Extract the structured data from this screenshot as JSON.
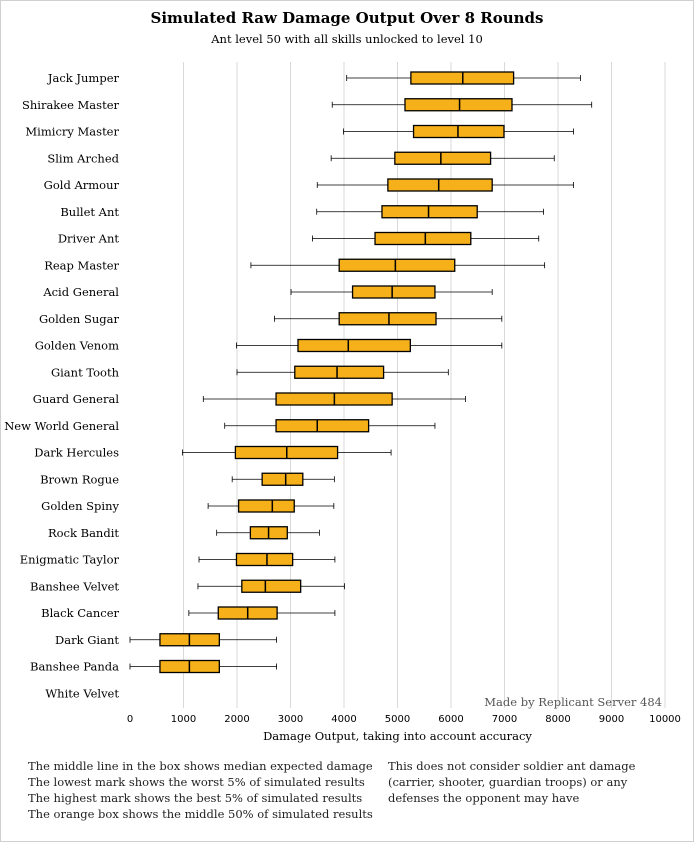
{
  "chart_data": {
    "type": "boxplot",
    "title": "Simulated Raw Damage Output Over 8 Rounds",
    "subtitle": "Ant level 50 with all skills unlocked to level 10",
    "xlabel": "Damage Output, taking into account accuracy",
    "xlim": [
      0,
      10000
    ],
    "xticks": [
      "0",
      "1000",
      "2000",
      "3000",
      "4000",
      "5000",
      "6000",
      "7000",
      "8000",
      "9000",
      "10000"
    ],
    "grid": "vertical",
    "box_color": "#F5B01A",
    "categories": [
      "Jack Jumper",
      "Shirakee Master",
      "Mimicry Master",
      "Slim Arched",
      "Gold Armour",
      "Bullet Ant",
      "Driver Ant",
      "Reap Master",
      "Acid General",
      "Golden Sugar",
      "Golden Venom",
      "Giant Tooth",
      "Guard General",
      "New World General",
      "Dark Hercules",
      "Brown Rogue",
      "Golden Spiny",
      "Rock Bandit",
      "Enigmatic Taylor",
      "Banshee Velvet",
      "Black Cancer",
      "Dark Giant",
      "Banshee Panda",
      "White Velvet"
    ],
    "series": [
      {
        "whisker_low": 4050,
        "q1": 5250,
        "median": 6220,
        "q3": 7170,
        "whisker_high": 8420
      },
      {
        "whisker_low": 3780,
        "q1": 5140,
        "median": 6160,
        "q3": 7140,
        "whisker_high": 8630
      },
      {
        "whisker_low": 3990,
        "q1": 5300,
        "median": 6130,
        "q3": 6990,
        "whisker_high": 8290
      },
      {
        "whisker_low": 3760,
        "q1": 4950,
        "median": 5810,
        "q3": 6740,
        "whisker_high": 7930
      },
      {
        "whisker_low": 3500,
        "q1": 4820,
        "median": 5770,
        "q3": 6770,
        "whisker_high": 8290
      },
      {
        "whisker_low": 3490,
        "q1": 4710,
        "median": 5580,
        "q3": 6490,
        "whisker_high": 7730
      },
      {
        "whisker_low": 3410,
        "q1": 4580,
        "median": 5520,
        "q3": 6370,
        "whisker_high": 7640
      },
      {
        "whisker_low": 2260,
        "q1": 3910,
        "median": 4960,
        "q3": 6070,
        "whisker_high": 7750
      },
      {
        "whisker_low": 3010,
        "q1": 4160,
        "median": 4900,
        "q3": 5700,
        "whisker_high": 6770
      },
      {
        "whisker_low": 2700,
        "q1": 3910,
        "median": 4840,
        "q3": 5720,
        "whisker_high": 6950
      },
      {
        "whisker_low": 1990,
        "q1": 3140,
        "median": 4080,
        "q3": 5240,
        "whisker_high": 6950
      },
      {
        "whisker_low": 2000,
        "q1": 3080,
        "median": 3870,
        "q3": 4740,
        "whisker_high": 5950
      },
      {
        "whisker_low": 1370,
        "q1": 2730,
        "median": 3820,
        "q3": 4900,
        "whisker_high": 6270
      },
      {
        "whisker_low": 1770,
        "q1": 2730,
        "median": 3500,
        "q3": 4460,
        "whisker_high": 5700
      },
      {
        "whisker_low": 980,
        "q1": 1970,
        "median": 2930,
        "q3": 3880,
        "whisker_high": 4880
      },
      {
        "whisker_low": 1910,
        "q1": 2470,
        "median": 2910,
        "q3": 3230,
        "whisker_high": 3820
      },
      {
        "whisker_low": 1460,
        "q1": 2030,
        "median": 2660,
        "q3": 3070,
        "whisker_high": 3810
      },
      {
        "whisker_low": 1620,
        "q1": 2250,
        "median": 2590,
        "q3": 2940,
        "whisker_high": 3540
      },
      {
        "whisker_low": 1290,
        "q1": 1990,
        "median": 2560,
        "q3": 3040,
        "whisker_high": 3830
      },
      {
        "whisker_low": 1270,
        "q1": 2090,
        "median": 2530,
        "q3": 3190,
        "whisker_high": 4010
      },
      {
        "whisker_low": 1100,
        "q1": 1650,
        "median": 2200,
        "q3": 2750,
        "whisker_high": 3830
      },
      {
        "whisker_low": 0,
        "q1": 560,
        "median": 1110,
        "q3": 1670,
        "whisker_high": 2740
      },
      {
        "whisker_low": 0,
        "q1": 560,
        "median": 1110,
        "q3": 1670,
        "whisker_high": 2740
      },
      null
    ]
  },
  "watermark": "Made by Replicant Server 484",
  "notes_left": [
    "The middle line in the box shows median expected damage",
    "The lowest mark shows the worst 5% of simulated results",
    "The highest mark shows the best 5% of simulated results",
    "The orange box shows the middle 50% of simulated results"
  ],
  "notes_right": [
    "This does not consider soldier ant damage",
    "(carrier, shooter, guardian troops) or any",
    "defenses the opponent may have"
  ]
}
